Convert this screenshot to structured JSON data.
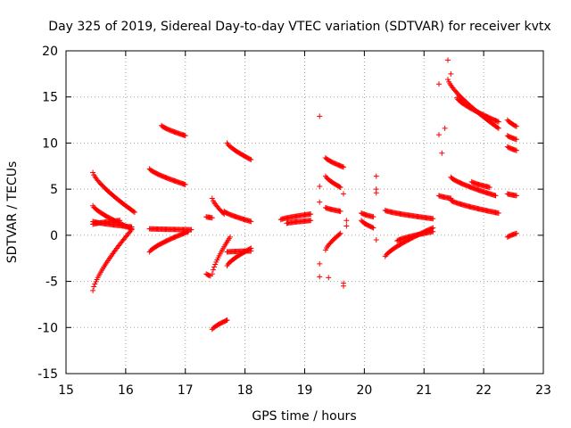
{
  "chart_data": {
    "type": "scatter",
    "title": "Day 325 of 2019, Sidereal Day-to-day VTEC variation (SDTVAR) for receiver kvtx",
    "xlabel": "GPS time / hours",
    "ylabel": "SDTVAR / TECUs",
    "xlim": [
      15,
      23
    ],
    "ylim": [
      -15,
      20
    ],
    "xticks": [
      15,
      16,
      17,
      18,
      19,
      20,
      21,
      22,
      23
    ],
    "yticks": [
      -15,
      -10,
      -5,
      0,
      5,
      10,
      15,
      20
    ],
    "grid": true,
    "marker": "+",
    "color": "#ff0000",
    "tracks": [
      {
        "x0": 15.45,
        "x1": 16.15,
        "y0": 6.8,
        "y1": 2.5
      },
      {
        "x0": 15.45,
        "x1": 16.1,
        "y0": 3.2,
        "y1": 0.7
      },
      {
        "x0": 15.45,
        "x1": 16.1,
        "y0": 1.5,
        "y1": 0.9
      },
      {
        "x0": 15.45,
        "x1": 15.9,
        "y0": 1.2,
        "y1": 1.6
      },
      {
        "x0": 15.45,
        "x1": 16.1,
        "y0": -6.0,
        "y1": 0.6
      },
      {
        "x0": 16.4,
        "x1": 17.0,
        "y0": 7.2,
        "y1": 5.5
      },
      {
        "x0": 16.4,
        "x1": 17.1,
        "y0": 0.7,
        "y1": 0.6
      },
      {
        "x0": 16.4,
        "x1": 17.05,
        "y0": -1.8,
        "y1": 0.4
      },
      {
        "x0": 16.6,
        "x1": 17.0,
        "y0": 11.9,
        "y1": 10.8
      },
      {
        "x0": 17.45,
        "x1": 17.7,
        "y0": -10.2,
        "y1": -9.2
      },
      {
        "x0": 17.45,
        "x1": 17.65,
        "y0": 4.0,
        "y1": 2.3
      },
      {
        "x0": 17.7,
        "x1": 18.1,
        "y0": 10.0,
        "y1": 8.2
      },
      {
        "x0": 17.65,
        "x1": 18.1,
        "y0": 2.6,
        "y1": 1.5
      },
      {
        "x0": 17.7,
        "x1": 18.1,
        "y0": -1.8,
        "y1": -1.7
      },
      {
        "x0": 17.7,
        "x1": 18.1,
        "y0": -3.3,
        "y1": -1.4
      },
      {
        "x0": 17.45,
        "x1": 17.75,
        "y0": -4.2,
        "y1": -0.2
      },
      {
        "x0": 17.35,
        "x1": 17.45,
        "y0": 2.0,
        "y1": 1.9
      },
      {
        "x0": 17.35,
        "x1": 17.42,
        "y0": -4.2,
        "y1": -4.4
      },
      {
        "x0": 18.6,
        "x1": 19.1,
        "y0": 1.7,
        "y1": 2.3
      },
      {
        "x0": 18.7,
        "x1": 19.1,
        "y0": 1.3,
        "y1": 1.6
      },
      {
        "x0": 19.35,
        "x1": 19.65,
        "y0": 8.4,
        "y1": 7.4
      },
      {
        "x0": 19.35,
        "x1": 19.6,
        "y0": 6.4,
        "y1": 5.2
      },
      {
        "x0": 19.35,
        "x1": 19.6,
        "y0": 3.0,
        "y1": 2.6
      },
      {
        "x0": 19.35,
        "x1": 19.6,
        "y0": -1.6,
        "y1": 0.2
      },
      {
        "x0": 19.95,
        "x1": 20.15,
        "y0": 2.4,
        "y1": 2.0
      },
      {
        "x0": 19.95,
        "x1": 20.15,
        "y0": 1.6,
        "y1": 0.8
      },
      {
        "x0": 20.35,
        "x1": 21.15,
        "y0": 2.7,
        "y1": 1.8
      },
      {
        "x0": 20.35,
        "x1": 21.15,
        "y0": -2.3,
        "y1": 0.8
      },
      {
        "x0": 20.55,
        "x1": 21.15,
        "y0": -0.6,
        "y1": 0.4
      },
      {
        "x0": 21.4,
        "x1": 22.25,
        "y0": 16.9,
        "y1": 11.6
      },
      {
        "x0": 21.55,
        "x1": 22.25,
        "y0": 14.9,
        "y1": 12.3
      },
      {
        "x0": 21.45,
        "x1": 22.2,
        "y0": 6.3,
        "y1": 4.3
      },
      {
        "x0": 21.45,
        "x1": 22.25,
        "y0": 3.8,
        "y1": 2.4
      },
      {
        "x0": 21.25,
        "x1": 21.45,
        "y0": 4.3,
        "y1": 4.0
      },
      {
        "x0": 21.8,
        "x1": 22.1,
        "y0": 5.8,
        "y1": 5.2
      },
      {
        "x0": 22.4,
        "x1": 22.55,
        "y0": 12.5,
        "y1": 11.8
      },
      {
        "x0": 22.4,
        "x1": 22.55,
        "y0": 10.8,
        "y1": 10.4
      },
      {
        "x0": 22.4,
        "x1": 22.55,
        "y0": 9.6,
        "y1": 9.2
      },
      {
        "x0": 22.4,
        "x1": 22.55,
        "y0": 4.5,
        "y1": 4.3
      },
      {
        "x0": 22.4,
        "x1": 22.55,
        "y0": -0.2,
        "y1": 0.2
      }
    ],
    "points": [
      {
        "x": 19.25,
        "y": 12.9
      },
      {
        "x": 19.25,
        "y": 5.3
      },
      {
        "x": 19.25,
        "y": 3.6
      },
      {
        "x": 19.25,
        "y": -3.1
      },
      {
        "x": 19.25,
        "y": -4.5
      },
      {
        "x": 19.4,
        "y": -4.6
      },
      {
        "x": 19.65,
        "y": -5.5
      },
      {
        "x": 19.65,
        "y": -5.2
      },
      {
        "x": 19.65,
        "y": 4.5
      },
      {
        "x": 19.7,
        "y": 1.6
      },
      {
        "x": 19.7,
        "y": 1.0
      },
      {
        "x": 20.2,
        "y": 6.4
      },
      {
        "x": 20.2,
        "y": 5.0
      },
      {
        "x": 20.2,
        "y": 4.6
      },
      {
        "x": 20.2,
        "y": -0.5
      },
      {
        "x": 21.25,
        "y": 16.4
      },
      {
        "x": 21.25,
        "y": 10.9
      },
      {
        "x": 21.3,
        "y": 8.9
      },
      {
        "x": 21.35,
        "y": 11.6
      },
      {
        "x": 21.4,
        "y": 19.0
      },
      {
        "x": 21.45,
        "y": 17.5
      }
    ]
  }
}
